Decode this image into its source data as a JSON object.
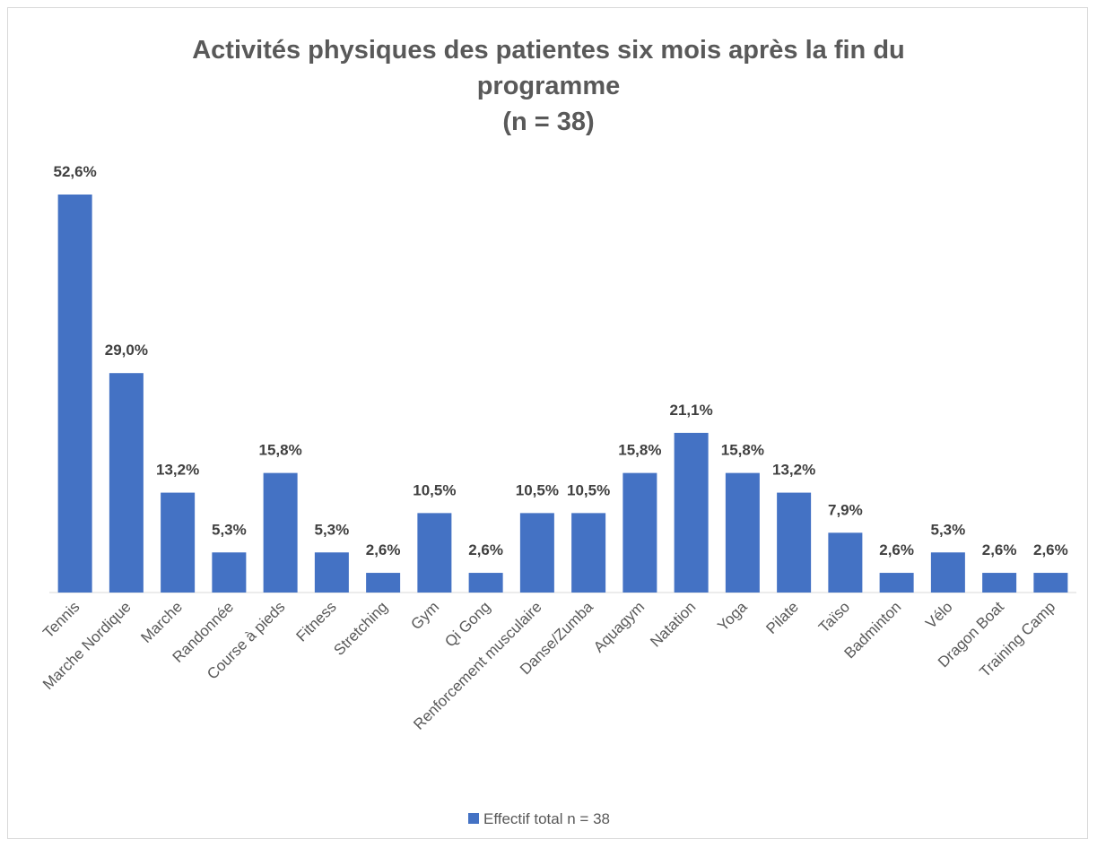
{
  "chart_data": {
    "type": "bar",
    "title": "Activités physiques des patientes six mois après la fin du programme",
    "subtitle": "(n = 38)",
    "categories": [
      "Tennis",
      "Marche Nordique",
      "Marche",
      "Randonnée",
      "Course à pieds",
      "Fitness",
      "Stretching",
      "Gym",
      "Qi Gong",
      "Renforcement musculaire",
      "Danse/Zumba",
      "Aquagym",
      "Natation",
      "Yoga",
      "Pilate",
      "Taïso",
      "Badminton",
      "Vélo",
      "Dragon Boat",
      "Training Camp"
    ],
    "series": [
      {
        "name": "Effectif total n = 38",
        "color": "#4472c4",
        "values": [
          52.6,
          29.0,
          13.2,
          5.3,
          15.8,
          5.3,
          2.6,
          10.5,
          2.6,
          10.5,
          10.5,
          15.8,
          21.1,
          15.8,
          13.2,
          7.9,
          2.6,
          5.3,
          2.6,
          2.6
        ],
        "value_labels": [
          "52,6%",
          "29,0%",
          "13,2%",
          "5,3%",
          "15,8%",
          "5,3%",
          "2,6%",
          "10,5%",
          "2,6%",
          "10,5%",
          "10,5%",
          "15,8%",
          "21,1%",
          "15,8%",
          "13,2%",
          "7,9%",
          "2,6%",
          "5,3%",
          "2,6%",
          "2,6%"
        ]
      }
    ],
    "legend": "bottom"
  }
}
